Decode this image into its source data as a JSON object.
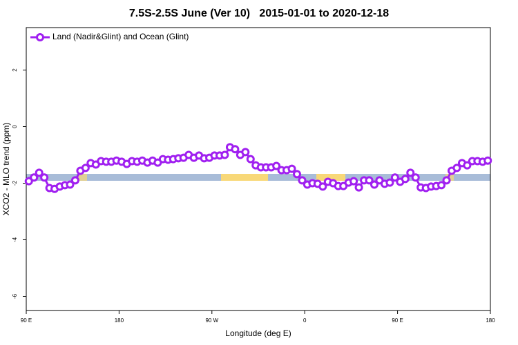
{
  "chart_data": {
    "type": "line",
    "title": "7.5S-2.5S June (Ver 10)   2015-01-01 to 2020-12-18",
    "x_label": "Longitude (deg E)",
    "y_label": "XCO2 - MLO trend (ppm)",
    "xlim": [
      90,
      540
    ],
    "xticks": [
      {
        "value": 90,
        "label": "90 E"
      },
      {
        "value": 180,
        "label": "180"
      },
      {
        "value": 270,
        "label": "90 W"
      },
      {
        "value": 360,
        "label": "0"
      },
      {
        "value": 450,
        "label": "90 E"
      },
      {
        "value": 540,
        "label": "180"
      }
    ],
    "ylim": [
      -6.5,
      3.5
    ],
    "yticks": [
      -6,
      -4,
      -2,
      0,
      2
    ],
    "legend": "top-left",
    "x": [
      92.5,
      97.5,
      102.5,
      107.5,
      112.5,
      117.5,
      122.5,
      127.5,
      132.5,
      137.5,
      142.5,
      147.5,
      152.5,
      157.5,
      162.5,
      167.5,
      172.5,
      177.5,
      182.5,
      187.5,
      192.5,
      197.5,
      202.5,
      207.5,
      212.5,
      217.5,
      222.5,
      227.5,
      232.5,
      237.5,
      242.5,
      247.5,
      252.5,
      257.5,
      262.5,
      267.5,
      272.5,
      277.5,
      282.5,
      287.5,
      292.5,
      297.5,
      302.5,
      307.5,
      312.5,
      317.5,
      322.5,
      327.5,
      332.5,
      337.5,
      342.5,
      347.5,
      352.5,
      357.5,
      362.5,
      367.5,
      372.5,
      377.5,
      382.5,
      387.5,
      392.5,
      397.5,
      402.5,
      407.5,
      412.5,
      417.5,
      422.5,
      427.5,
      432.5,
      437.5,
      442.5,
      447.5,
      452.5,
      457.5,
      462.5,
      467.5,
      472.5,
      477.5,
      482.5,
      487.5,
      492.5,
      497.5,
      502.5,
      507.5,
      512.5,
      517.5,
      522.5,
      527.5,
      532.5,
      537.5
    ],
    "series": [
      {
        "name": "Land (Nadir&Glint) and Ocean (Glint)",
        "color": "#a020f0",
        "values": [
          -1.93,
          -1.8,
          -1.63,
          -1.8,
          -2.17,
          -2.2,
          -2.12,
          -2.07,
          -2.05,
          -1.9,
          -1.56,
          -1.46,
          -1.29,
          -1.34,
          -1.22,
          -1.24,
          -1.24,
          -1.2,
          -1.24,
          -1.32,
          -1.22,
          -1.24,
          -1.2,
          -1.27,
          -1.2,
          -1.27,
          -1.15,
          -1.17,
          -1.15,
          -1.12,
          -1.1,
          -1.0,
          -1.1,
          -1.02,
          -1.12,
          -1.1,
          -1.02,
          -1.02,
          -1.0,
          -0.73,
          -0.8,
          -1.0,
          -0.9,
          -1.15,
          -1.37,
          -1.44,
          -1.44,
          -1.44,
          -1.39,
          -1.54,
          -1.54,
          -1.49,
          -1.68,
          -1.9,
          -2.05,
          -2.0,
          -2.02,
          -2.12,
          -1.95,
          -2.0,
          -2.1,
          -2.1,
          -1.98,
          -1.93,
          -2.15,
          -1.9,
          -1.9,
          -2.05,
          -1.9,
          -2.02,
          -1.98,
          -1.8,
          -1.95,
          -1.85,
          -1.63,
          -1.8,
          -2.15,
          -2.17,
          -2.12,
          -2.1,
          -2.07,
          -1.9,
          -1.56,
          -1.46,
          -1.29,
          -1.37,
          -1.22,
          -1.22,
          -1.24,
          -1.2
        ]
      }
    ]
  }
}
